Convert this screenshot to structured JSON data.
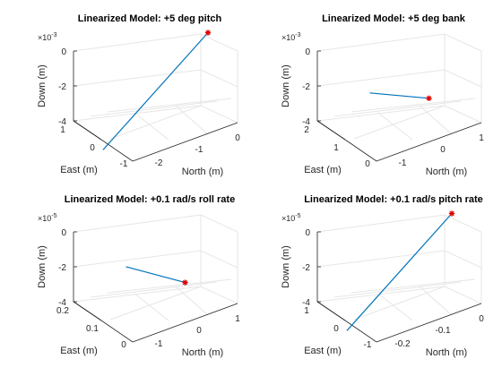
{
  "chart_data": [
    {
      "type": "line",
      "title": "Linearized Model: +5 deg pitch",
      "xlabel": "East (m)",
      "ylabel": "North (m)",
      "zlabel": "Down (m)",
      "exponent_base": "×10",
      "exponent_power": "-3",
      "east_ticks": [
        "1",
        "0",
        "-1"
      ],
      "north_ticks": [
        "-2",
        "-1",
        "0"
      ],
      "down_ticks": [
        "0",
        "-2",
        "-4"
      ],
      "east_range": [
        -1,
        1
      ],
      "north_range": [
        -2.6,
        0
      ],
      "down_range": [
        -0.004,
        0
      ],
      "series": [
        {
          "east": [
            0,
            0
          ],
          "north": [
            -2.6,
            0
          ],
          "down": [
            -0.0045,
            0
          ]
        }
      ],
      "marker": {
        "symbol": "*",
        "color": "#e00000",
        "east": 0,
        "north": 0,
        "down": 0
      },
      "grid": true
    },
    {
      "type": "line",
      "title": "Linearized Model: +5 deg bank",
      "xlabel": "East (m)",
      "ylabel": "North (m)",
      "zlabel": "Down (m)",
      "exponent_base": "×10",
      "exponent_power": "-3",
      "east_ticks": [
        "2",
        "1",
        "0"
      ],
      "north_ticks": [
        "-1",
        "0",
        "1"
      ],
      "down_ticks": [
        "0",
        "-2",
        "-4"
      ],
      "east_range": [
        0,
        2.6
      ],
      "north_range": [
        -1,
        1
      ],
      "down_range": [
        -0.004,
        0
      ],
      "series": [
        {
          "east": [
            2.6,
            0
          ],
          "north": [
            0,
            0
          ],
          "down": [
            -0.0035,
            -0.0015
          ]
        }
      ],
      "marker": {
        "symbol": "*",
        "color": "#e00000",
        "east": 0,
        "north": 0,
        "down": -0.0015
      },
      "grid": true
    },
    {
      "type": "line",
      "title": "Linearized Model: +0.1 rad/s roll rate",
      "xlabel": "East (m)",
      "ylabel": "North (m)",
      "zlabel": "Down (m)",
      "exponent_base": "×10",
      "exponent_power": "-5",
      "east_ticks": [
        "0.2",
        "0.1",
        "0"
      ],
      "north_ticks": [
        "-1",
        "0",
        "1"
      ],
      "down_ticks": [
        "0",
        "-2",
        "-4"
      ],
      "east_range": [
        0,
        0.26
      ],
      "north_range": [
        -1,
        1
      ],
      "down_range": [
        -4e-05,
        0
      ],
      "series": [
        {
          "east": [
            0.26,
            0
          ],
          "north": [
            0,
            0
          ],
          "down": [
            -3.1e-05,
            -1.7e-05
          ]
        }
      ],
      "marker": {
        "symbol": "*",
        "color": "#e00000",
        "east": 0,
        "north": 0,
        "down": -1.7e-05
      },
      "grid": true
    },
    {
      "type": "line",
      "title": "Linearized Model: +0.1 rad/s pitch rate",
      "xlabel": "East (m)",
      "ylabel": "North (m)",
      "zlabel": "Down (m)",
      "exponent_base": "×10",
      "exponent_power": "-5",
      "east_ticks": [
        "1",
        "0",
        "-1"
      ],
      "north_ticks": [
        "-0.2",
        "-0.1",
        "0"
      ],
      "down_ticks": [
        "0",
        "-2",
        "-4"
      ],
      "east_range": [
        -1,
        1
      ],
      "north_range": [
        -0.26,
        0
      ],
      "down_range": [
        -4e-05,
        0
      ],
      "series": [
        {
          "east": [
            0,
            0
          ],
          "north": [
            -0.26,
            0
          ],
          "down": [
            -4.5e-05,
            0
          ]
        }
      ],
      "marker": {
        "symbol": "*",
        "color": "#e00000",
        "east": 0,
        "north": 0,
        "down": 0
      },
      "grid": true
    }
  ]
}
